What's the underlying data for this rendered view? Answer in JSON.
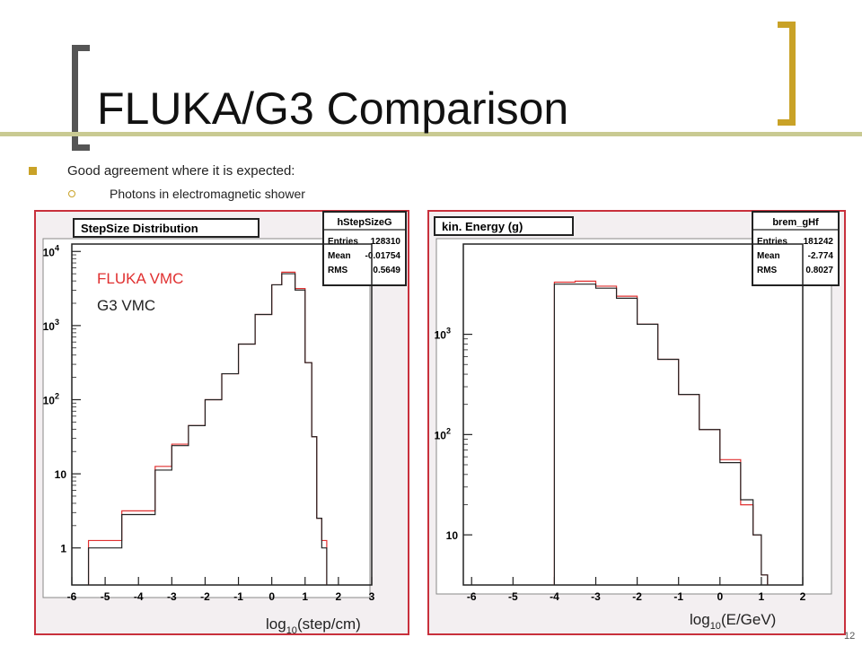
{
  "slide": {
    "title": "FLUKA/G3 Comparison",
    "bullet": "Good agreement where it is expected:",
    "sub_bullet": "Photons in electromagnetic shower",
    "page_number": "12"
  },
  "colors": {
    "fluka": "#e03030",
    "g3": "#222222",
    "frame": "#c8303c",
    "panel_bg": "#f3eff1",
    "accent": "#c9a227"
  },
  "chart_data": [
    {
      "type": "line",
      "title": "StepSize Distribution",
      "xlabel_main": "log",
      "xlabel_sub": "10",
      "xlabel_rest": "(step/cm)",
      "xlim": [
        -6,
        3
      ],
      "ylim_log10": [
        -0.5,
        4.1
      ],
      "yscale": "log",
      "xticks": [
        "-6",
        "-5",
        "-4",
        "-3",
        "-2",
        "-1",
        "0",
        "1",
        "2",
        "3"
      ],
      "xtick_values": [
        -6,
        -5,
        -4,
        -3,
        -2,
        -1,
        0,
        1,
        2,
        3
      ],
      "yticks": [
        {
          "base": "1",
          "exp": "",
          "v": 0
        },
        {
          "base": "10",
          "exp": "",
          "v": 1
        },
        {
          "base": "10",
          "exp": "2",
          "v": 2
        },
        {
          "base": "10",
          "exp": "3",
          "v": 3
        },
        {
          "base": "10",
          "exp": "4",
          "v": 4
        }
      ],
      "legend": [
        "FLUKA VMC",
        "G3 VMC"
      ],
      "stats": {
        "name": "hStepSizeG",
        "rows": [
          [
            "Entries",
            "128310"
          ],
          [
            "Mean",
            "-0.01754"
          ],
          [
            "RMS",
            "0.5649"
          ]
        ]
      },
      "series": [
        {
          "name": "FLUKA VMC",
          "x": [
            -5.5,
            -4.5,
            -3.5,
            -3,
            -2.5,
            -2,
            -1.5,
            -1,
            -0.5,
            0,
            0.3,
            0.7,
            1.0,
            1.2,
            1.35,
            1.5
          ],
          "log10y": [
            0.1,
            0.5,
            1.1,
            1.4,
            1.65,
            2.0,
            2.35,
            2.75,
            3.15,
            3.55,
            3.72,
            3.5,
            2.5,
            1.5,
            0.4,
            0.1
          ]
        },
        {
          "name": "G3 VMC",
          "x": [
            -5.5,
            -4.5,
            -3.5,
            -3,
            -2.5,
            -2,
            -1.5,
            -1,
            -0.5,
            0,
            0.3,
            0.7,
            1.0,
            1.2,
            1.35,
            1.5
          ],
          "log10y": [
            0.0,
            0.45,
            1.05,
            1.38,
            1.65,
            2.0,
            2.35,
            2.75,
            3.15,
            3.55,
            3.7,
            3.48,
            2.5,
            1.5,
            0.4,
            0.0
          ]
        }
      ]
    },
    {
      "type": "line",
      "title": "kin. Energy (g)",
      "xlabel_main": "log",
      "xlabel_sub": "10",
      "xlabel_rest": "(E/GeV)",
      "xlim": [
        -6.2,
        2
      ],
      "ylim_log10": [
        0.5,
        3.9
      ],
      "yscale": "log",
      "xticks": [
        "-6",
        "-5",
        "-4",
        "-3",
        "-2",
        "-1",
        "0",
        "1",
        "2"
      ],
      "xtick_values": [
        -6,
        -5,
        -4,
        -3,
        -2,
        -1,
        0,
        1,
        2
      ],
      "yticks": [
        {
          "base": "10",
          "exp": "",
          "v": 1
        },
        {
          "base": "10",
          "exp": "2",
          "v": 2
        },
        {
          "base": "10",
          "exp": "3",
          "v": 3
        }
      ],
      "stats": {
        "name": "brem_gHf",
        "rows": [
          [
            "Entries",
            "181242"
          ],
          [
            "Mean",
            "-2.774"
          ],
          [
            "RMS",
            "0.8027"
          ]
        ]
      },
      "series": [
        {
          "name": "FLUKA VMC",
          "x": [
            -4,
            -3.5,
            -3,
            -2.5,
            -2,
            -1.5,
            -1,
            -0.5,
            0,
            0.5,
            0.8,
            1.0
          ],
          "log10y": [
            3.52,
            3.53,
            3.48,
            3.38,
            3.1,
            2.75,
            2.4,
            2.05,
            1.75,
            1.3,
            1.0,
            0.6
          ]
        },
        {
          "name": "G3 VMC",
          "x": [
            -4,
            -3.5,
            -3,
            -2.5,
            -2,
            -1.5,
            -1,
            -0.5,
            0,
            0.5,
            0.8,
            1.0
          ],
          "log10y": [
            3.5,
            3.5,
            3.46,
            3.36,
            3.1,
            2.75,
            2.4,
            2.05,
            1.72,
            1.35,
            1.0,
            0.6
          ]
        }
      ]
    }
  ]
}
